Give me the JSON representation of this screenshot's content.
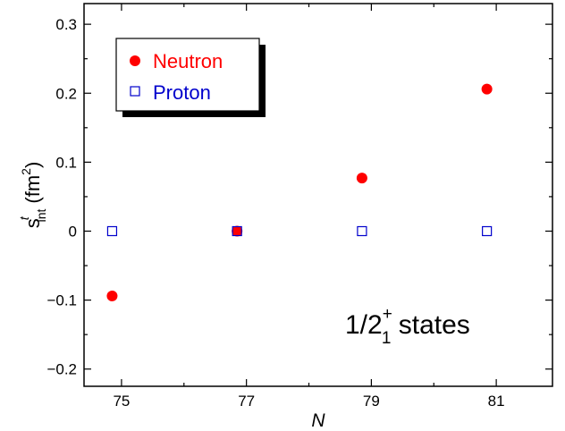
{
  "chart_data": {
    "type": "scatter",
    "xlabel": "N",
    "ylabel": {
      "base": "s",
      "superscript": "t",
      "subscript": "int",
      "unit_open": "(fm",
      "unit_sup": "2",
      "unit_close": ")"
    },
    "xlim": [
      74.4,
      81.9
    ],
    "ylim": [
      -0.225,
      0.33
    ],
    "x_ticks": [
      75,
      77,
      79,
      81
    ],
    "x_tick_labels": [
      "75",
      "77",
      "79",
      "81"
    ],
    "x_minor_ticks": [
      76,
      78,
      80
    ],
    "y_ticks": [
      -0.2,
      -0.1,
      0,
      0.1,
      0.2,
      0.3
    ],
    "y_tick_labels": [
      "−0.2",
      "−0.1",
      "0",
      "0.1",
      "0.2",
      "0.3"
    ],
    "y_minor_ticks": [
      -0.15,
      -0.05,
      0.05,
      0.15,
      0.25
    ],
    "grid": false,
    "legend_placement": "top-left",
    "series": [
      {
        "name": "Neutron",
        "marker": "filled-circle",
        "color": "#ff0000",
        "x": [
          74.85,
          76.85,
          78.85,
          80.85
        ],
        "y": [
          -0.094,
          0.0,
          0.077,
          0.206
        ]
      },
      {
        "name": "Proton",
        "marker": "open-square",
        "color": "#0000cc",
        "x": [
          74.85,
          76.85,
          78.85,
          80.85
        ],
        "y": [
          0.0,
          0.0,
          0.0,
          0.0
        ]
      }
    ],
    "annotation": {
      "main": "1/2",
      "sup": "+",
      "sub": "1",
      "tail": " states"
    }
  }
}
